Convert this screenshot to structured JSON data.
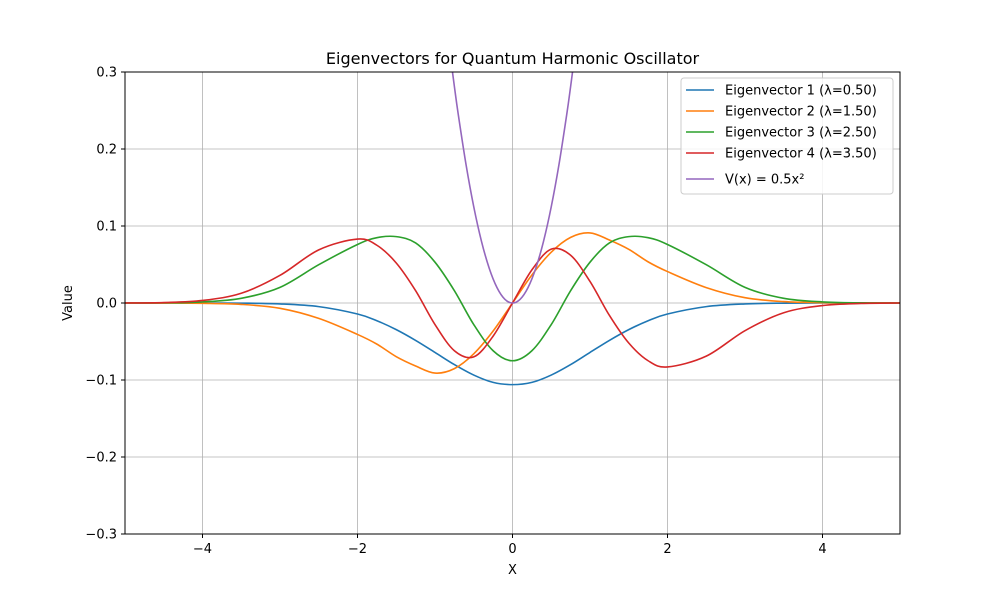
{
  "chart_data": {
    "type": "line",
    "title": "Eigenvectors  for Quantum Harmonic Oscillator",
    "xlabel": "X",
    "ylabel": "Value",
    "xlim": [
      -5,
      5
    ],
    "ylim": [
      -0.3,
      0.3
    ],
    "x_ticks": [
      -4,
      -2,
      0,
      2,
      4
    ],
    "x_tick_labels": [
      "−4",
      "−2",
      "0",
      "2",
      "4"
    ],
    "y_ticks": [
      -0.3,
      -0.2,
      -0.1,
      0.0,
      0.1,
      0.2,
      0.3
    ],
    "y_tick_labels": [
      "−0.3",
      "−0.2",
      "−0.1",
      "0.0",
      "0.1",
      "0.2",
      "0.3"
    ],
    "grid": true,
    "legend_position": "top-right",
    "series": [
      {
        "name": "Eigenvector 1 (λ=0.50)",
        "color": "#1f77b4",
        "x": [
          -5,
          -4.5,
          -4,
          -3.5,
          -3,
          -2.5,
          -2,
          -1.75,
          -1.5,
          -1.25,
          -1,
          -0.75,
          -0.5,
          -0.25,
          0,
          0.25,
          0.5,
          0.75,
          1,
          1.25,
          1.5,
          1.75,
          2,
          2.5,
          3,
          3.5,
          4,
          4.5,
          5
        ],
        "y": [
          0,
          0,
          -0.0,
          -0.0002,
          -0.0012,
          -0.0047,
          -0.0143,
          -0.023,
          -0.0346,
          -0.0486,
          -0.0642,
          -0.08,
          -0.0936,
          -0.1031,
          -0.106,
          -0.1031,
          -0.0936,
          -0.08,
          -0.0642,
          -0.0486,
          -0.0346,
          -0.023,
          -0.0143,
          -0.0047,
          -0.0012,
          -0.0002,
          -0.0,
          0,
          0
        ]
      },
      {
        "name": "Eigenvector 2 (λ=1.50)",
        "color": "#ff7f0e",
        "x": [
          -5,
          -4.5,
          -4,
          -3.5,
          -3,
          -2.5,
          -2,
          -1.75,
          -1.5,
          -1.25,
          -1,
          -0.75,
          -0.5,
          -0.25,
          0,
          0.25,
          0.5,
          0.75,
          1,
          1.25,
          1.5,
          1.75,
          2,
          2.5,
          3,
          3.5,
          4,
          4.5,
          5
        ],
        "y": [
          0,
          -0.0001,
          -0.0004,
          -0.0018,
          -0.0069,
          -0.02,
          -0.0408,
          -0.0534,
          -0.0697,
          -0.0818,
          -0.091,
          -0.0852,
          -0.066,
          -0.0364,
          0,
          0.0364,
          0.066,
          0.0852,
          0.091,
          0.0818,
          0.0697,
          0.0534,
          0.0408,
          0.02,
          0.0069,
          0.0018,
          0.0004,
          0.0001,
          0
        ]
      },
      {
        "name": "Eigenvector 3 (λ=2.50)",
        "color": "#2ca02c",
        "x": [
          -5,
          -4.5,
          -4,
          -3.5,
          -3,
          -2.5,
          -2,
          -1.75,
          -1.5,
          -1.25,
          -1,
          -0.75,
          -0.5,
          -0.25,
          0,
          0.25,
          0.5,
          0.75,
          1,
          1.25,
          1.5,
          1.75,
          2,
          2.5,
          3,
          3.5,
          4,
          4.5,
          5
        ],
        "y": [
          0,
          0.0002,
          0.0014,
          0.0061,
          0.0203,
          0.0497,
          0.076,
          0.0848,
          0.0862,
          0.078,
          0.053,
          0.016,
          -0.028,
          -0.062,
          -0.075,
          -0.062,
          -0.028,
          0.016,
          0.053,
          0.078,
          0.0862,
          0.0848,
          0.076,
          0.0497,
          0.0203,
          0.0061,
          0.0014,
          0.0002,
          0
        ]
      },
      {
        "name": "Eigenvector 4 (λ=3.50)",
        "color": "#d62728",
        "x": [
          -5,
          -4.5,
          -4,
          -3.5,
          -3,
          -2.5,
          -2,
          -1.75,
          -1.5,
          -1.25,
          -1,
          -0.75,
          -0.5,
          -0.25,
          0,
          0.25,
          0.5,
          0.75,
          1,
          1.25,
          1.5,
          1.75,
          2,
          2.5,
          3,
          3.5,
          4,
          4.5,
          5
        ],
        "y": [
          0,
          0.0006,
          0.0033,
          0.0126,
          0.0359,
          0.069,
          0.083,
          0.075,
          0.052,
          0.016,
          -0.028,
          -0.062,
          -0.07,
          -0.043,
          0,
          0.043,
          0.07,
          0.062,
          0.028,
          -0.016,
          -0.052,
          -0.075,
          -0.083,
          -0.069,
          -0.0359,
          -0.0126,
          -0.0033,
          -0.0006,
          0
        ]
      },
      {
        "name": "V(x) = 0.5x²",
        "color": "#9467bd",
        "x": [
          -0.8,
          -0.75,
          -0.7,
          -0.6,
          -0.5,
          -0.4,
          -0.3,
          -0.2,
          -0.1,
          0,
          0.1,
          0.2,
          0.3,
          0.4,
          0.5,
          0.6,
          0.7,
          0.75,
          0.8
        ],
        "y": [
          0.32,
          0.28125,
          0.245,
          0.18,
          0.125,
          0.08,
          0.045,
          0.02,
          0.005,
          0,
          0.005,
          0.02,
          0.045,
          0.08,
          0.125,
          0.18,
          0.245,
          0.28125,
          0.32
        ]
      }
    ]
  }
}
